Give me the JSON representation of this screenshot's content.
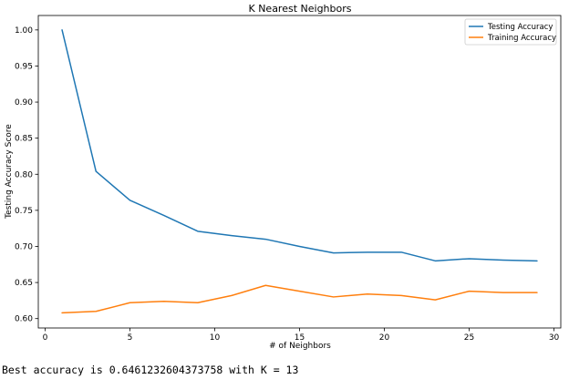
{
  "chart_data": {
    "type": "line",
    "title": "K Nearest Neighbors",
    "xlabel": "# of Neighbors",
    "ylabel": "Testing Accuracy Score",
    "xlim": [
      -0.4,
      30.4
    ],
    "ylim": [
      0.587,
      1.02
    ],
    "xticks": [
      0,
      5,
      10,
      15,
      20,
      25,
      30
    ],
    "xtick_labels": [
      "0",
      "5",
      "10",
      "15",
      "20",
      "25",
      "30"
    ],
    "yticks": [
      0.6,
      0.65,
      0.7,
      0.75,
      0.8,
      0.85,
      0.9,
      0.95,
      1.0
    ],
    "ytick_labels": [
      "0.60",
      "0.65",
      "0.70",
      "0.75",
      "0.80",
      "0.85",
      "0.90",
      "0.95",
      "1.00"
    ],
    "grid": false,
    "legend_position": "top-right",
    "x": [
      1,
      3,
      5,
      7,
      9,
      11,
      13,
      15,
      17,
      19,
      21,
      23,
      25,
      27,
      29
    ],
    "series": [
      {
        "name": "Testing Accuracy",
        "color": "#1f77b4",
        "values": [
          1.0,
          0.804,
          0.764,
          0.743,
          0.721,
          0.715,
          0.71,
          0.7,
          0.691,
          0.692,
          0.692,
          0.68,
          0.683,
          0.681,
          0.68
        ]
      },
      {
        "name": "Training Accuracy",
        "color": "#ff7f0e",
        "values": [
          0.608,
          0.61,
          0.622,
          0.624,
          0.622,
          0.632,
          0.646,
          0.638,
          0.63,
          0.634,
          0.632,
          0.626,
          0.638,
          0.636,
          0.636
        ]
      }
    ]
  },
  "output": {
    "text": "Best accuracy is 0.6461232604373758 with K = 13"
  }
}
